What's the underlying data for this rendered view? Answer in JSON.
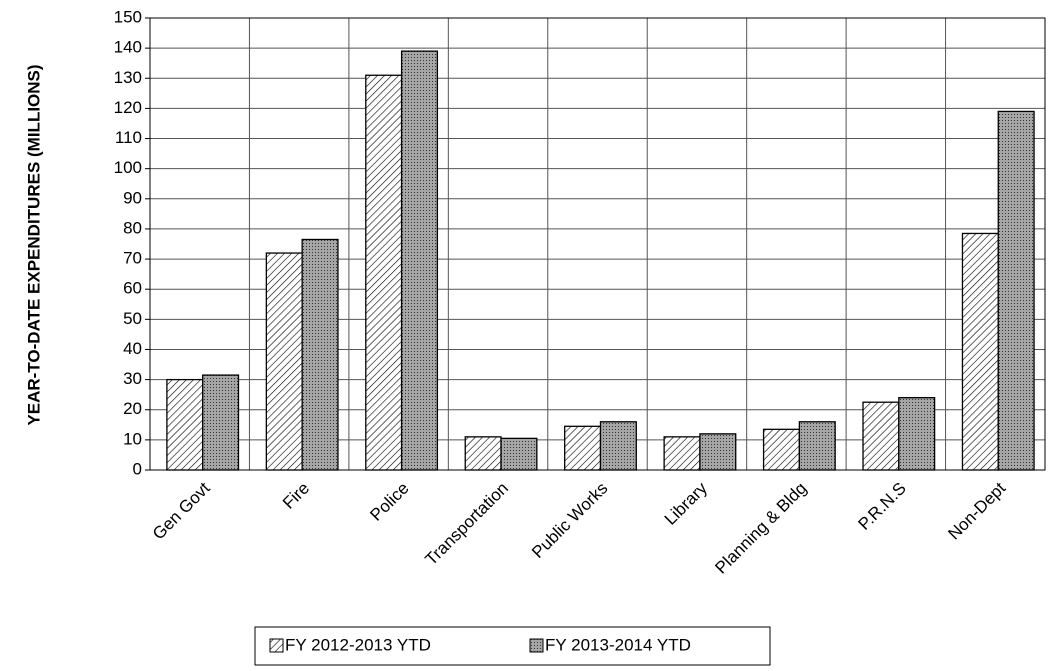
{
  "chart_data": {
    "type": "bar",
    "y_label": "YEAR-TO-DATE EXPENDITURES (MILLIONS)",
    "categories": [
      "Gen Govt",
      "Fire",
      "Police",
      "Transportation",
      "Public Works",
      "Library",
      "Planning & Bldg",
      "P.R.N.S",
      "Non-Dept"
    ],
    "series": [
      {
        "name": "FY 2012-2013 YTD",
        "color": "#ffffff",
        "pattern": "hatch",
        "values": [
          30,
          72,
          131,
          11,
          14.5,
          11,
          13.5,
          22.5,
          78.5
        ]
      },
      {
        "name": "FY 2013-2014 YTD",
        "color": "#a6a6a6",
        "pattern": "dots",
        "values": [
          31.5,
          76.5,
          139,
          10.5,
          16,
          12,
          16,
          24,
          119
        ]
      }
    ],
    "ylim": [
      0,
      150
    ],
    "yticks": [
      0,
      10,
      20,
      30,
      40,
      50,
      60,
      70,
      80,
      90,
      100,
      110,
      120,
      130,
      140,
      150
    ],
    "grid": true,
    "legend": "bottom"
  }
}
